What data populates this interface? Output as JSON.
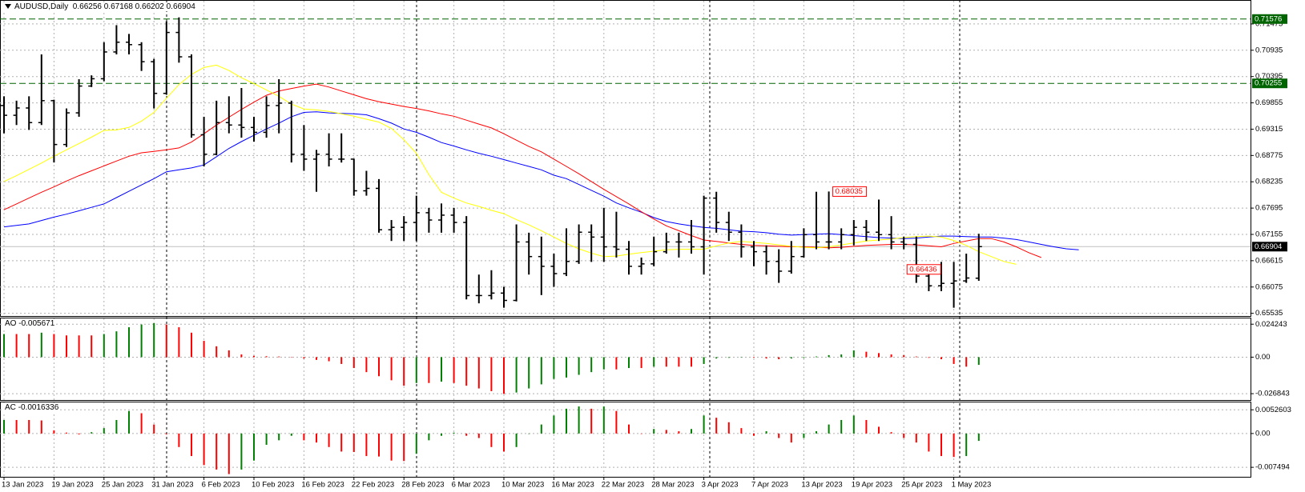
{
  "chart_data": [
    {
      "type": "ohlc",
      "symbol": "AUDUSD,Daily",
      "color": "#000000",
      "grid": true,
      "categories": [
        "13 Jan 2023",
        null,
        null,
        null,
        "19 Jan 2023",
        null,
        null,
        null,
        "25 Jan 2023",
        null,
        null,
        null,
        "31 Jan 2023",
        null,
        null,
        null,
        "6 Feb 2023",
        null,
        null,
        null,
        "10 Feb 2023",
        null,
        null,
        null,
        "16 Feb 2023",
        null,
        null,
        null,
        "22 Feb 2023",
        null,
        null,
        null,
        "28 Feb 2023",
        null,
        null,
        null,
        "6 Mar 2023",
        null,
        null,
        null,
        "10 Mar 2023",
        null,
        null,
        null,
        "16 Mar 2023",
        null,
        null,
        null,
        "22 Mar 2023",
        null,
        null,
        null,
        "28 Mar 2023",
        null,
        null,
        null,
        "3 Apr 2023",
        null,
        null,
        null,
        "7 Apr 2023",
        null,
        null,
        null,
        "13 Apr 2023",
        null,
        null,
        null,
        "19 Apr 2023",
        null,
        null,
        null,
        "25 Apr 2023",
        null,
        null,
        null,
        "1 May 2023",
        null,
        null,
        null,
        null,
        null,
        null,
        null,
        null,
        null,
        null
      ],
      "open": [
        0.698,
        0.696,
        0.6975,
        0.6945,
        0.699,
        0.69,
        0.6965,
        0.702,
        0.7035,
        0.709,
        0.711,
        0.7105,
        0.707,
        0.7005,
        0.713,
        0.708,
        0.692,
        0.688,
        0.6945,
        0.694,
        0.6935,
        0.6925,
        0.698,
        0.6985,
        0.688,
        0.687,
        0.688,
        0.687,
        0.687,
        0.6805,
        0.681,
        0.6725,
        0.673,
        0.674,
        0.676,
        0.6745,
        0.6755,
        0.674,
        0.659,
        0.659,
        0.6595,
        0.658,
        0.67,
        0.667,
        0.665,
        0.6635,
        0.666,
        0.672,
        0.671,
        0.669,
        0.6685,
        0.665,
        0.6655,
        0.668,
        0.67,
        0.67,
        0.669,
        0.679,
        0.674,
        0.672,
        0.669,
        0.668,
        0.666,
        0.664,
        0.667,
        0.6715,
        0.67,
        0.67,
        0.6715,
        0.673,
        0.672,
        0.6715,
        0.67,
        0.6695,
        0.663,
        0.661,
        0.6615,
        0.662,
        0.66256,
        null,
        null,
        null,
        null,
        null,
        null,
        null,
        null
      ],
      "high": [
        0.6999,
        0.699,
        0.6999,
        0.7085,
        0.6992,
        0.6974,
        0.7034,
        0.7042,
        0.711,
        0.7145,
        0.7127,
        0.711,
        0.7076,
        0.7153,
        0.7161,
        0.7085,
        0.6957,
        0.699,
        0.6999,
        0.7016,
        0.6957,
        0.6999,
        0.7034,
        0.699,
        0.694,
        0.6889,
        0.6923,
        0.6923,
        0.6871,
        0.6846,
        0.6829,
        0.6745,
        0.6753,
        0.6795,
        0.677,
        0.6779,
        0.677,
        0.6753,
        0.6633,
        0.6642,
        0.6608,
        0.6736,
        0.6719,
        0.6711,
        0.6676,
        0.6728,
        0.6736,
        0.6736,
        0.677,
        0.6762,
        0.6702,
        0.6668,
        0.6711,
        0.6719,
        0.6719,
        0.6745,
        0.6795,
        0.6803,
        0.6762,
        0.6736,
        0.6702,
        0.6693,
        0.6685,
        0.6702,
        0.6728,
        0.6803,
        0.68035,
        0.6728,
        0.6745,
        0.6745,
        0.6787,
        0.6753,
        0.6711,
        0.6711,
        0.665,
        0.6659,
        0.6659,
        0.6676,
        0.67168,
        null,
        null,
        null,
        null,
        null,
        null,
        null,
        null
      ],
      "low": [
        0.6923,
        0.694,
        0.693,
        0.694,
        0.6863,
        0.6895,
        0.6957,
        0.7018,
        0.703,
        0.7085,
        0.7085,
        0.7051,
        0.6974,
        0.7002,
        0.7068,
        0.6914,
        0.6855,
        0.6878,
        0.6923,
        0.6914,
        0.6906,
        0.6914,
        0.6923,
        0.6863,
        0.6846,
        0.6803,
        0.6855,
        0.6863,
        0.6795,
        0.6795,
        0.6719,
        0.6702,
        0.6702,
        0.6702,
        0.6719,
        0.6719,
        0.6719,
        0.6582,
        0.6574,
        0.6582,
        0.6565,
        0.6578,
        0.6633,
        0.6591,
        0.6608,
        0.663,
        0.6655,
        0.6659,
        0.6659,
        0.6668,
        0.6633,
        0.6633,
        0.665,
        0.6676,
        0.6668,
        0.6676,
        0.6633,
        0.6719,
        0.6702,
        0.6668,
        0.665,
        0.6633,
        0.6616,
        0.6635,
        0.6668,
        0.6685,
        0.6685,
        0.6685,
        0.6693,
        0.6702,
        0.6702,
        0.6685,
        0.6685,
        0.6616,
        0.6599,
        0.6599,
        0.6565,
        0.6616,
        0.66202,
        null,
        null,
        null,
        null,
        null,
        null,
        null,
        null
      ],
      "close": [
        0.696,
        0.6975,
        0.6945,
        0.699,
        0.69,
        0.6965,
        0.702,
        0.7035,
        0.709,
        0.711,
        0.7105,
        0.707,
        0.7005,
        0.713,
        0.708,
        0.692,
        0.688,
        0.6945,
        0.694,
        0.6935,
        0.6925,
        0.698,
        0.6985,
        0.688,
        0.687,
        0.688,
        0.687,
        0.687,
        0.6805,
        0.681,
        0.6725,
        0.673,
        0.674,
        0.676,
        0.6745,
        0.6755,
        0.674,
        0.659,
        0.659,
        0.6595,
        0.658,
        0.67,
        0.667,
        0.665,
        0.6635,
        0.666,
        0.672,
        0.671,
        0.669,
        0.6685,
        0.665,
        0.6655,
        0.668,
        0.67,
        0.67,
        0.669,
        0.679,
        0.674,
        0.672,
        0.669,
        0.668,
        0.666,
        0.664,
        0.667,
        0.6715,
        0.67,
        0.67,
        0.6715,
        0.673,
        0.672,
        0.6715,
        0.67,
        0.6695,
        0.663,
        0.661,
        0.6615,
        0.662,
        0.6626,
        0.66904,
        null,
        null,
        null,
        null,
        null,
        null,
        null,
        null
      ],
      "series": [
        {
          "color": "#0000ff",
          "values": [
            0.6731,
            0.6734,
            0.6737,
            0.6744,
            0.6751,
            0.6757,
            0.6764,
            0.6771,
            0.6778,
            0.6791,
            0.6804,
            0.6817,
            0.683,
            0.6844,
            0.6848,
            0.6852,
            0.6858,
            0.6875,
            0.6892,
            0.6906,
            0.6919,
            0.6932,
            0.6944,
            0.6957,
            0.6966,
            0.6967,
            0.6965,
            0.6964,
            0.6963,
            0.6961,
            0.6953,
            0.6944,
            0.6932,
            0.6925,
            0.6915,
            0.6904,
            0.6897,
            0.6889,
            0.6882,
            0.6876,
            0.6869,
            0.6862,
            0.6855,
            0.6848,
            0.6837,
            0.683,
            0.6818,
            0.6806,
            0.6794,
            0.678,
            0.677,
            0.6761,
            0.675,
            0.6742,
            0.6737,
            0.6733,
            0.673,
            0.6728,
            0.6725,
            0.6722,
            0.6721,
            0.6719,
            0.6716,
            0.6714,
            0.6715,
            0.6716,
            0.6717,
            0.6715,
            0.6713,
            0.6711,
            0.6709,
            0.6708,
            0.6707,
            0.6708,
            0.671,
            0.6712,
            0.6712,
            0.6711,
            0.671,
            0.671,
            0.6708,
            0.6705,
            0.67,
            0.6695,
            0.669,
            0.6686,
            0.6684
          ]
        },
        {
          "color": "#ff0000",
          "values": [
            0.6766,
            0.6778,
            0.679,
            0.6802,
            0.6813,
            0.6825,
            0.6836,
            0.6846,
            0.6856,
            0.6866,
            0.6876,
            0.6883,
            0.6886,
            0.6889,
            0.6893,
            0.6905,
            0.6922,
            0.694,
            0.6956,
            0.6972,
            0.6987,
            0.7001,
            0.701,
            0.7015,
            0.702,
            0.7024,
            0.7018,
            0.701,
            0.7002,
            0.6994,
            0.6988,
            0.6983,
            0.6978,
            0.6974,
            0.6969,
            0.6963,
            0.6958,
            0.695,
            0.6942,
            0.6934,
            0.6922,
            0.6909,
            0.6896,
            0.6885,
            0.687,
            0.6855,
            0.684,
            0.6824,
            0.6808,
            0.6793,
            0.6778,
            0.6762,
            0.6747,
            0.6733,
            0.6723,
            0.6713,
            0.6704,
            0.6701,
            0.6698,
            0.6695,
            0.6693,
            0.6692,
            0.6691,
            0.669,
            0.669,
            0.6689,
            0.6688,
            0.6689,
            0.6691,
            0.6693,
            0.6694,
            0.6695,
            0.6695,
            0.6694,
            0.6692,
            0.669,
            0.6697,
            0.6702,
            0.6707,
            0.6707,
            0.67,
            0.669,
            0.6678,
            0.6668,
            null,
            null,
            null
          ]
        },
        {
          "color": "#ffff00",
          "values": [
            0.6824,
            0.6836,
            0.6849,
            0.6862,
            0.6876,
            0.6889,
            0.6902,
            0.6915,
            0.6929,
            0.693,
            0.6935,
            0.6948,
            0.6966,
            0.6995,
            0.7023,
            0.7044,
            0.7058,
            0.7063,
            0.7052,
            0.7037,
            0.7025,
            0.7012,
            0.6999,
            0.6983,
            0.6973,
            0.6971,
            0.6968,
            0.6963,
            0.6958,
            0.6952,
            0.6946,
            0.6933,
            0.691,
            0.6882,
            0.6838,
            0.6802,
            0.679,
            0.678,
            0.6773,
            0.6765,
            0.6758,
            0.6746,
            0.6735,
            0.6723,
            0.671,
            0.6697,
            0.6686,
            0.6677,
            0.667,
            0.6671,
            0.6675,
            0.6678,
            0.6681,
            0.6684,
            0.6685,
            0.6685,
            0.6685,
            0.6692,
            0.6698,
            0.6701,
            0.6699,
            0.6697,
            0.6694,
            0.6691,
            0.6689,
            0.6688,
            0.669,
            0.6694,
            0.6698,
            0.6702,
            0.6704,
            0.6706,
            0.6709,
            0.6711,
            0.6712,
            0.671,
            0.6703,
            0.6693,
            0.668,
            0.667,
            0.666,
            0.6654,
            null,
            null,
            null,
            null,
            null
          ]
        }
      ],
      "levels": [
        {
          "value": 0.71576,
          "color": "#006400"
        },
        {
          "value": 0.70255,
          "color": "#006400"
        }
      ],
      "annotations": [
        {
          "value": 0.68035,
          "color": "#ff0000"
        },
        {
          "value": 0.66436,
          "color": "#ff0000"
        }
      ],
      "ylim": [
        0.6548,
        0.7195
      ],
      "yticks": [
        0.71475,
        0.70935,
        0.70395,
        0.69855,
        0.69315,
        0.68775,
        0.68235,
        0.67695,
        0.67155,
        0.66615,
        0.66075,
        0.65535
      ]
    },
    {
      "type": "oscillator",
      "name": "AO",
      "up_color": "#008000",
      "down_color": "#ff0000",
      "grid": true,
      "values": [
        0.017,
        0.017,
        0.017,
        0.018,
        0.017,
        0.016,
        0.016,
        0.016,
        0.017,
        0.019,
        0.022,
        0.024,
        0.025,
        0.024,
        0.022,
        0.018,
        0.012,
        0.008,
        0.005,
        0.002,
        0.001,
        0.0007,
        0.0005,
        -0.0003,
        -0.001,
        -0.002,
        -0.003,
        -0.005,
        -0.008,
        -0.011,
        -0.014,
        -0.017,
        -0.021,
        -0.019,
        -0.019,
        -0.018,
        -0.019,
        -0.021,
        -0.023,
        -0.025,
        -0.027,
        -0.026,
        -0.023,
        -0.02,
        -0.016,
        -0.015,
        -0.013,
        -0.011,
        -0.009,
        -0.009,
        -0.008,
        -0.008,
        -0.007,
        -0.007,
        -0.007,
        -0.007,
        -0.005,
        -0.001,
        -0.0005,
        -0.0003,
        -0.0004,
        -0.001,
        -0.0015,
        -0.001,
        -0.0006,
        0.0005,
        0.0015,
        0.002,
        0.005,
        0.004,
        0.003,
        0.002,
        0.0015,
        0.0005,
        -0.0005,
        -0.0015,
        -0.005,
        -0.007,
        -0.005671
      ],
      "ylim": [
        -0.0315,
        0.0285
      ],
      "yticks": [
        0.024243,
        {
          "value": 0,
          "label": "0.00"
        },
        -0.026843
      ]
    },
    {
      "type": "oscillator",
      "name": "AC",
      "up_color": "#008000",
      "down_color": "#ff0000",
      "grid": true,
      "values": [
        0.003,
        0.003,
        0.003,
        0.0029,
        0.0007,
        0.0002,
        -0.0002,
        0.0003,
        0.0012,
        0.003,
        0.005,
        0.0045,
        0.002,
        -0.0002,
        -0.003,
        -0.005,
        -0.007,
        -0.008,
        -0.009,
        -0.008,
        -0.006,
        -0.0025,
        -0.0015,
        -0.0005,
        -0.0015,
        -0.002,
        -0.003,
        -0.004,
        -0.0041,
        -0.005,
        -0.0051,
        -0.006,
        -0.0061,
        -0.0045,
        -0.0015,
        -0.0005,
        0.0002,
        -0.0005,
        -0.001,
        -0.003,
        -0.004,
        -0.003,
        0,
        0.002,
        0.004,
        0.0055,
        0.006,
        0.0055,
        0.006,
        0.005,
        0.002,
        0,
        0.001,
        0.0008,
        0.0005,
        0.001,
        0.004,
        0.0035,
        0.0025,
        0.0012,
        -0.0005,
        0.0005,
        -0.001,
        -0.002,
        -0.001,
        0.0005,
        0.002,
        0.003,
        0.004,
        0.003,
        0.0015,
        0.0003,
        -0.001,
        -0.002,
        -0.004,
        -0.005,
        -0.0052,
        -0.005,
        -0.0016336
      ],
      "ylim": [
        -0.0096,
        0.0069
      ],
      "yticks": [
        0.0052603,
        {
          "value": 0,
          "label": "0.00"
        },
        -0.007494
      ]
    }
  ]
}
